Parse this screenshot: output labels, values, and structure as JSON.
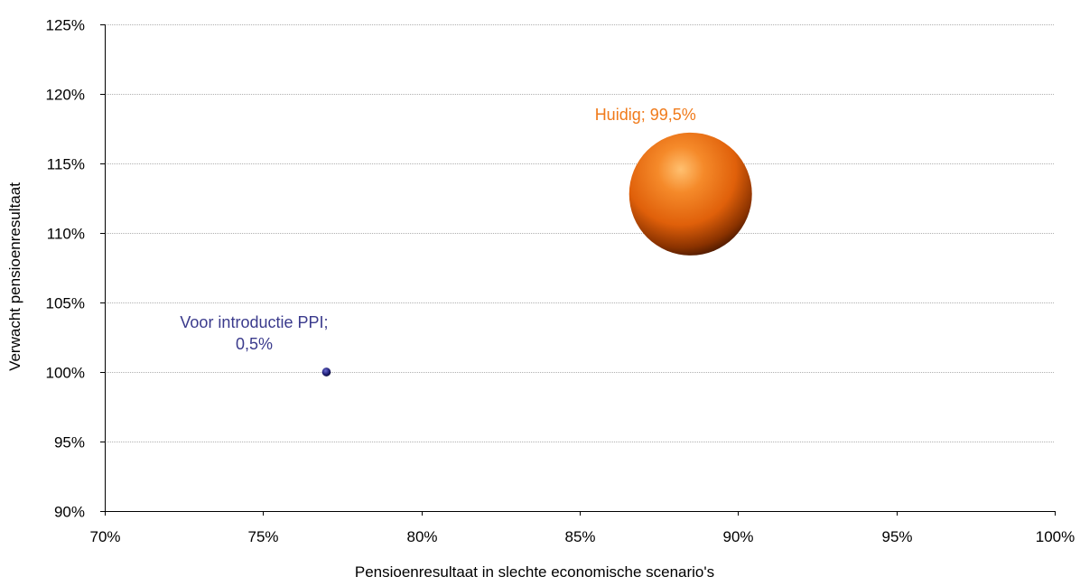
{
  "chart_data": {
    "type": "bubble",
    "title": "",
    "xlabel": "Pensioenresultaat in slechte economische scenario's",
    "ylabel": "Verwacht pensioenresultaat",
    "xlim": [
      0.7,
      1.0
    ],
    "ylim": [
      0.9,
      1.25
    ],
    "x_ticks": [
      0.7,
      0.75,
      0.8,
      0.85,
      0.9,
      0.95,
      1.0
    ],
    "y_ticks": [
      0.9,
      0.95,
      1.0,
      1.05,
      1.1,
      1.15,
      1.2,
      1.25
    ],
    "x_tick_labels": [
      "70%",
      "75%",
      "80%",
      "85%",
      "90%",
      "95%",
      "100%"
    ],
    "y_tick_labels": [
      "90%",
      "95%",
      "100%",
      "105%",
      "110%",
      "115%",
      "120%",
      "125%"
    ],
    "grid": "horizontal",
    "legend": "none",
    "points": [
      {
        "x": 0.77,
        "y": 1.0,
        "size": 0.005,
        "label_lines": [
          "Voor introductie PPI;",
          "0,5%"
        ],
        "color": "#1f1f7a",
        "label_color": "#3a3a8c"
      },
      {
        "x": 0.885,
        "y": 1.128,
        "size": 0.995,
        "label_lines": [
          "Huidig; 99,5%"
        ],
        "color": "#f07a1a",
        "label_color": "#f07a1a"
      }
    ]
  }
}
